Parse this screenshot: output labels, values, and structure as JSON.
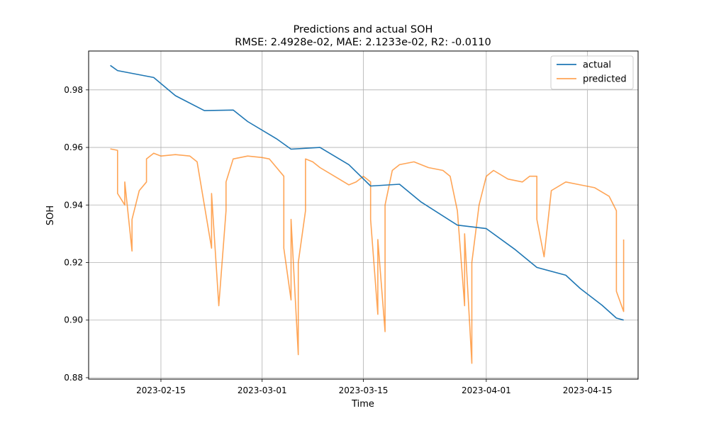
{
  "chart_data": {
    "type": "line",
    "title": "Predictions and actual SOH",
    "subtitle": "RMSE: 2.4928e-02, MAE: 2.1233e-02, R2: -0.0110",
    "xlabel": "Time",
    "ylabel": "SOH",
    "xlim": [
      "2023-02-05",
      "2023-04-22"
    ],
    "ylim": [
      0.8795,
      0.9935
    ],
    "x_ticks": [
      "2023-02-15",
      "2023-03-01",
      "2023-03-15",
      "2023-04-01",
      "2023-04-15"
    ],
    "y_ticks": [
      0.88,
      0.9,
      0.92,
      0.94,
      0.96,
      0.98
    ],
    "y_tick_labels": [
      "0.88",
      "0.90",
      "0.92",
      "0.94",
      "0.96",
      "0.98"
    ],
    "grid": true,
    "legend_position": "upper right",
    "series": [
      {
        "name": "actual",
        "color": "#1f77b4",
        "x": [
          "2023-02-08",
          "2023-02-09",
          "2023-02-14",
          "2023-02-17",
          "2023-02-21",
          "2023-02-25",
          "2023-02-27",
          "2023-03-03",
          "2023-03-05",
          "2023-03-09",
          "2023-03-13",
          "2023-03-16",
          "2023-03-20",
          "2023-03-23",
          "2023-03-28",
          "2023-04-01",
          "2023-04-05",
          "2023-04-08",
          "2023-04-12",
          "2023-04-14",
          "2023-04-17",
          "2023-04-19",
          "2023-04-20"
        ],
        "y": [
          0.9885,
          0.9867,
          0.9843,
          0.978,
          0.9728,
          0.973,
          0.969,
          0.963,
          0.9594,
          0.96,
          0.954,
          0.9466,
          0.9472,
          0.941,
          0.933,
          0.9318,
          0.9245,
          0.9183,
          0.9156,
          0.911,
          0.9052,
          0.9007,
          0.9
        ]
      },
      {
        "name": "predicted",
        "color": "#ff7f0e",
        "opacity": 0.7,
        "x": [
          "2023-02-08",
          "2023-02-09",
          "2023-02-09",
          "2023-02-10",
          "2023-02-10",
          "2023-02-11",
          "2023-02-11",
          "2023-02-12",
          "2023-02-13",
          "2023-02-13",
          "2023-02-14",
          "2023-02-15",
          "2023-02-17",
          "2023-02-19",
          "2023-02-20",
          "2023-02-21",
          "2023-02-22",
          "2023-02-22",
          "2023-02-23",
          "2023-02-24",
          "2023-02-24",
          "2023-02-25",
          "2023-02-27",
          "2023-03-01",
          "2023-03-02",
          "2023-03-03",
          "2023-03-04",
          "2023-03-04",
          "2023-03-05",
          "2023-03-05",
          "2023-03-06",
          "2023-03-06",
          "2023-03-07",
          "2023-03-07",
          "2023-03-08",
          "2023-03-09",
          "2023-03-11",
          "2023-03-13",
          "2023-03-14",
          "2023-03-15",
          "2023-03-16",
          "2023-03-16",
          "2023-03-17",
          "2023-03-17",
          "2023-03-18",
          "2023-03-18",
          "2023-03-19",
          "2023-03-20",
          "2023-03-22",
          "2023-03-24",
          "2023-03-26",
          "2023-03-27",
          "2023-03-28",
          "2023-03-29",
          "2023-03-29",
          "2023-03-30",
          "2023-03-30",
          "2023-03-31",
          "2023-04-01",
          "2023-04-02",
          "2023-04-04",
          "2023-04-06",
          "2023-04-07",
          "2023-04-08",
          "2023-04-08",
          "2023-04-09",
          "2023-04-10",
          "2023-04-12",
          "2023-04-14",
          "2023-04-16",
          "2023-04-18",
          "2023-04-19",
          "2023-04-19",
          "2023-04-20",
          "2023-04-20"
        ],
        "y": [
          0.9595,
          0.959,
          0.944,
          0.94,
          0.948,
          0.924,
          0.935,
          0.945,
          0.948,
          0.956,
          0.958,
          0.957,
          0.9575,
          0.957,
          0.955,
          0.94,
          0.925,
          0.944,
          0.905,
          0.938,
          0.948,
          0.956,
          0.957,
          0.9565,
          0.956,
          0.953,
          0.95,
          0.925,
          0.907,
          0.935,
          0.888,
          0.92,
          0.938,
          0.956,
          0.955,
          0.953,
          0.95,
          0.947,
          0.948,
          0.95,
          0.948,
          0.935,
          0.902,
          0.928,
          0.896,
          0.94,
          0.952,
          0.954,
          0.955,
          0.953,
          0.952,
          0.95,
          0.938,
          0.905,
          0.93,
          0.885,
          0.92,
          0.94,
          0.95,
          0.952,
          0.949,
          0.948,
          0.95,
          0.95,
          0.935,
          0.922,
          0.945,
          0.948,
          0.947,
          0.946,
          0.943,
          0.938,
          0.91,
          0.903,
          0.928
        ]
      }
    ]
  }
}
